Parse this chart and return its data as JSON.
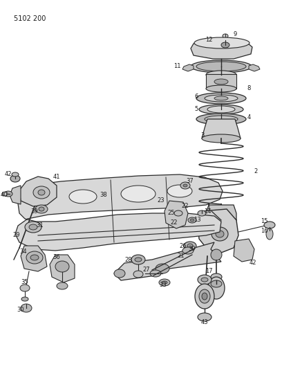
{
  "title": "5102 200",
  "bg_color": "#ffffff",
  "lc": "#2a2a2a",
  "figsize": [
    4.08,
    5.33
  ],
  "dpi": 100,
  "fs_label": 6.0,
  "fs_title": 7.0
}
